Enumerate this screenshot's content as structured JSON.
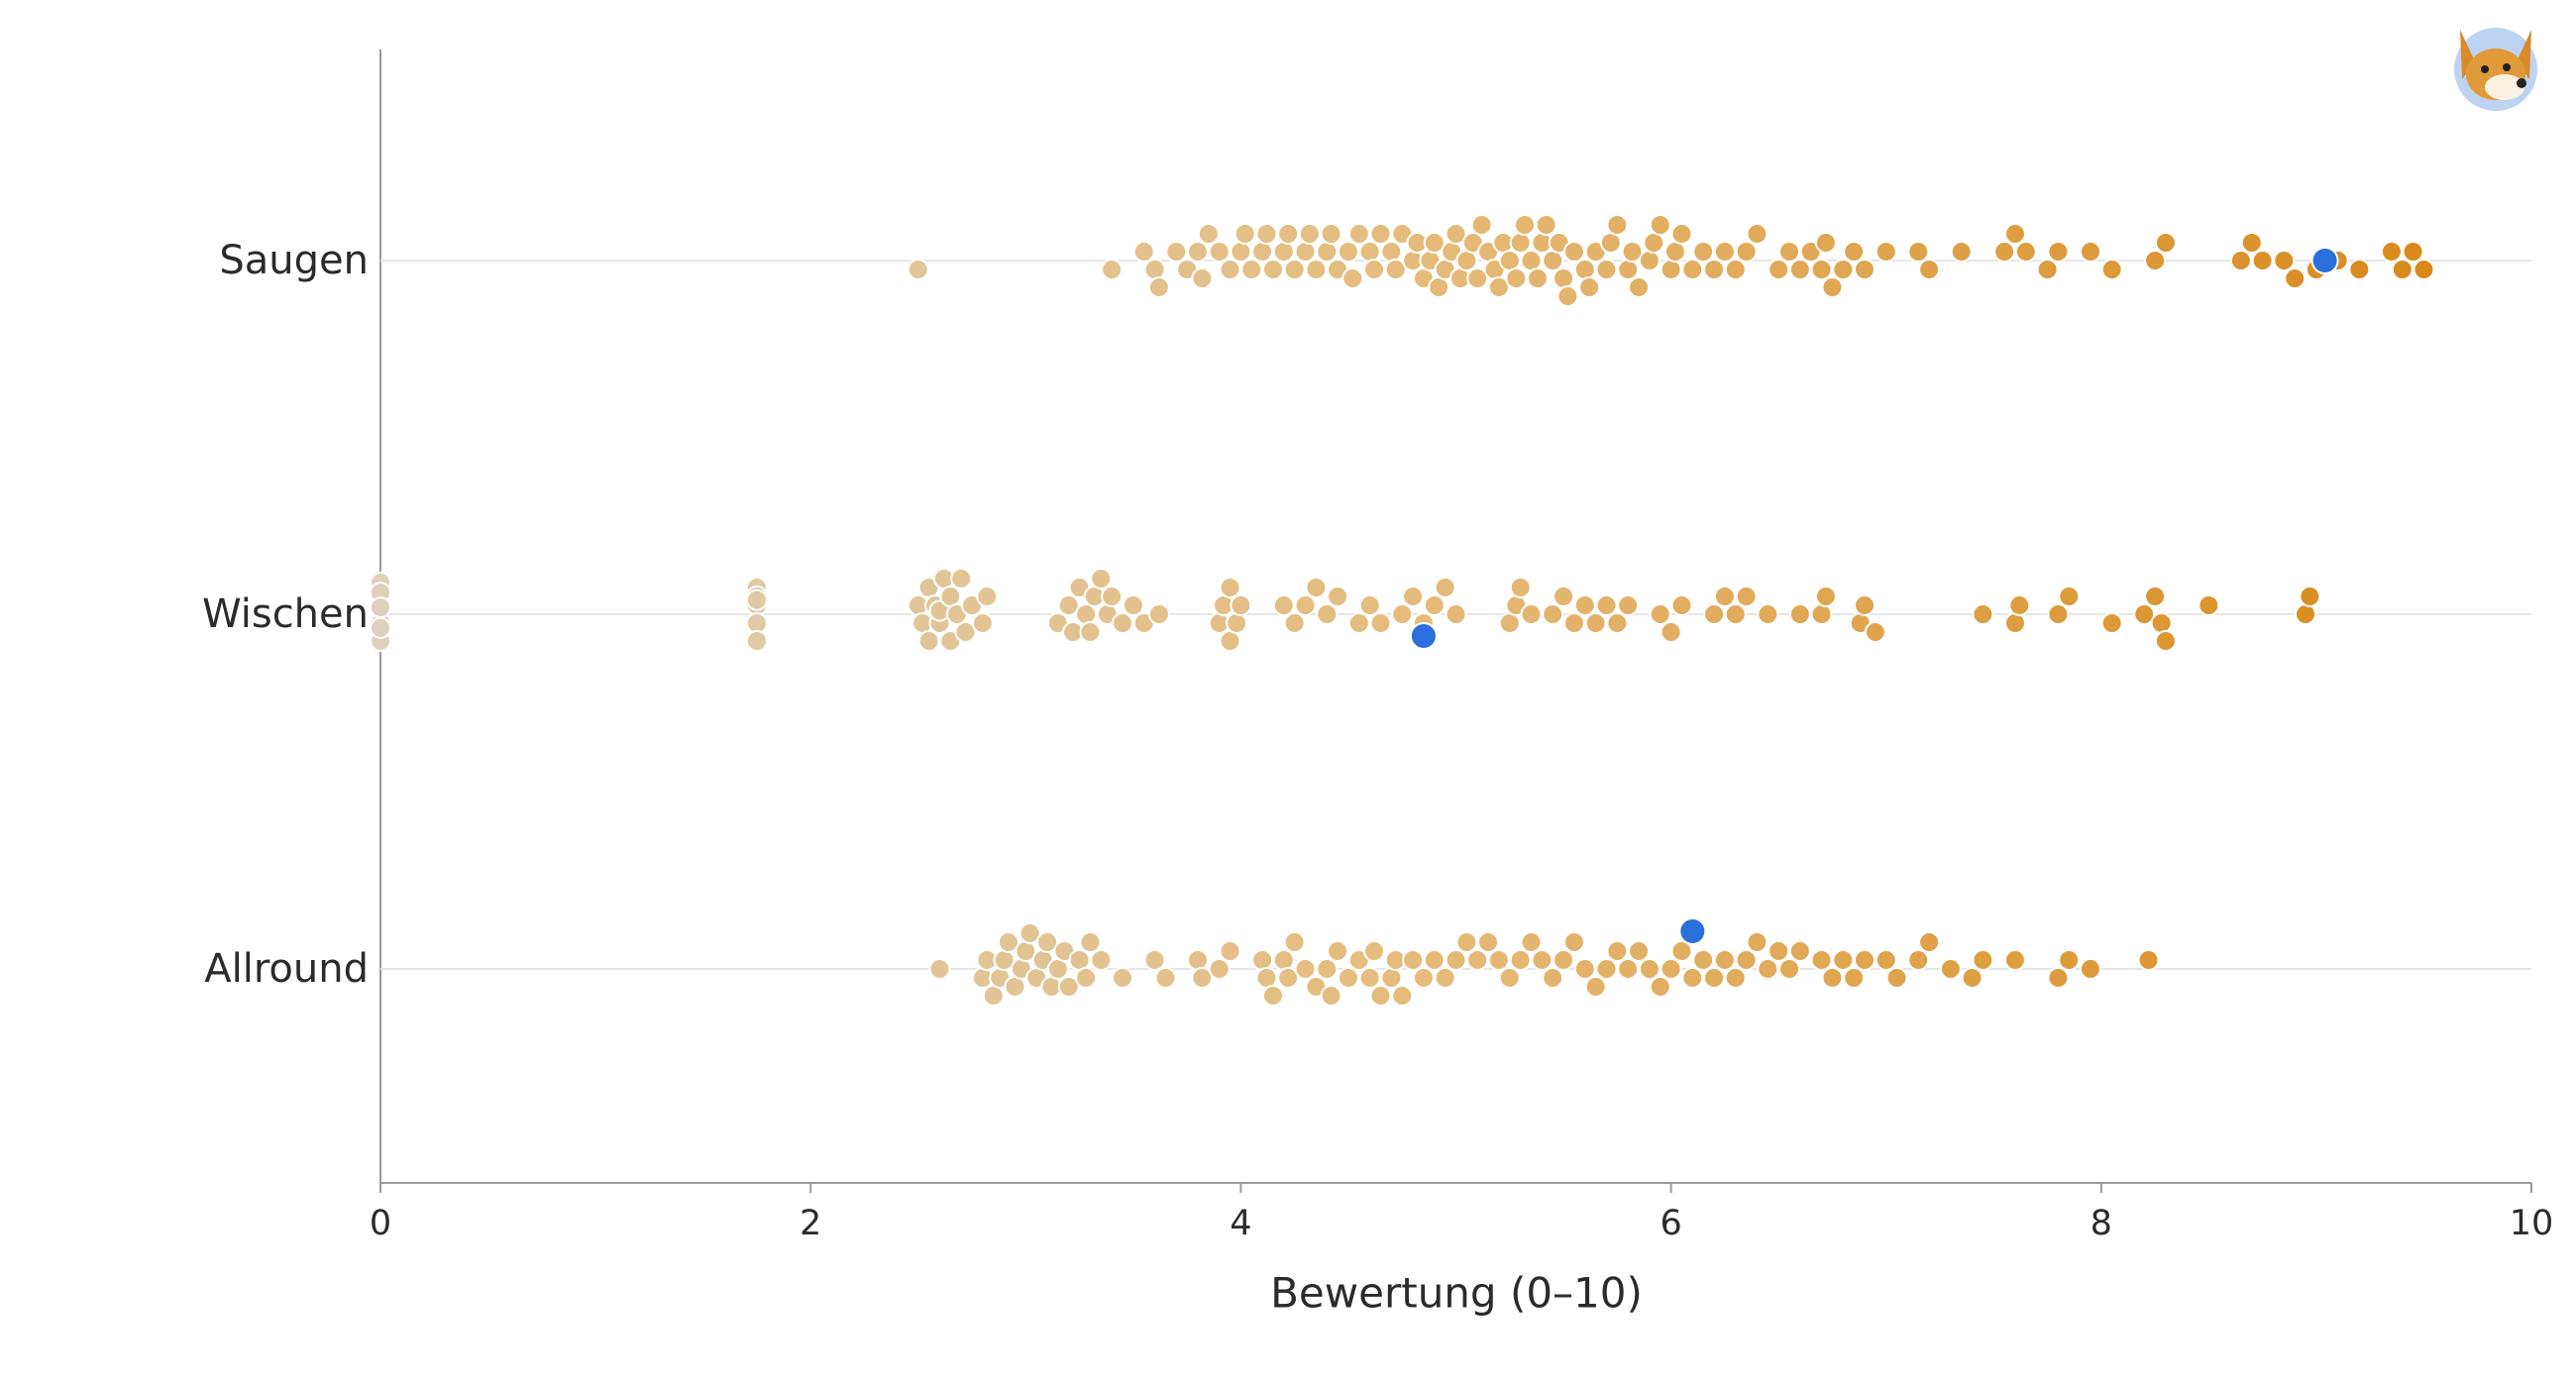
{
  "chart_data": {
    "type": "strip",
    "x_label": "Bewertung (0–10)",
    "categories": [
      "Saugen",
      "Wischen",
      "Allround"
    ],
    "groups": [
      {
        "values": [
          2.5,
          3.4,
          3.55,
          3.6,
          3.62,
          3.7,
          3.75,
          3.8,
          3.82,
          3.85,
          3.9,
          3.95,
          4.0,
          4.02,
          4.05,
          4.1,
          4.12,
          4.15,
          4.2,
          4.22,
          4.25,
          4.3,
          4.32,
          4.35,
          4.4,
          4.42,
          4.45,
          4.5,
          4.52,
          4.55,
          4.6,
          4.62,
          4.65,
          4.7,
          4.72,
          4.75,
          4.8,
          4.82,
          4.85,
          4.88,
          4.9,
          4.92,
          4.95,
          4.98,
          5.0,
          5.02,
          5.05,
          5.08,
          5.1,
          5.12,
          5.15,
          5.18,
          5.2,
          5.22,
          5.25,
          5.28,
          5.3,
          5.32,
          5.35,
          5.38,
          5.4,
          5.42,
          5.45,
          5.48,
          5.5,
          5.52,
          5.55,
          5.6,
          5.62,
          5.65,
          5.7,
          5.72,
          5.75,
          5.8,
          5.82,
          5.85,
          5.9,
          5.92,
          5.95,
          6.0,
          6.02,
          6.05,
          6.1,
          6.15,
          6.2,
          6.25,
          6.3,
          6.35,
          6.4,
          6.5,
          6.55,
          6.6,
          6.65,
          6.7,
          6.72,
          6.75,
          6.8,
          6.85,
          6.9,
          7.0,
          7.15,
          7.2,
          7.35,
          7.55,
          7.6,
          7.65,
          7.75,
          7.8,
          7.95,
          8.05,
          8.25,
          8.3,
          8.65,
          8.7,
          8.75,
          8.85,
          8.9,
          9.0,
          9.1,
          9.2,
          9.35,
          9.4,
          9.45,
          9.5
        ],
        "highlight": 9.04
      },
      {
        "values": [
          0,
          0,
          0,
          0,
          0,
          0,
          0,
          0,
          1.75,
          1.75,
          1.75,
          1.75,
          1.75,
          1.75,
          2.5,
          2.52,
          2.55,
          2.55,
          2.58,
          2.6,
          2.6,
          2.62,
          2.65,
          2.65,
          2.68,
          2.7,
          2.72,
          2.75,
          2.8,
          2.82,
          3.15,
          3.2,
          3.22,
          3.25,
          3.28,
          3.3,
          3.32,
          3.35,
          3.38,
          3.4,
          3.45,
          3.5,
          3.55,
          3.62,
          3.9,
          3.92,
          3.95,
          3.95,
          3.98,
          4.0,
          4.2,
          4.25,
          4.3,
          4.35,
          4.4,
          4.45,
          4.55,
          4.6,
          4.65,
          4.75,
          4.8,
          4.85,
          4.9,
          4.95,
          5.0,
          5.25,
          5.28,
          5.3,
          5.35,
          5.45,
          5.5,
          5.55,
          5.6,
          5.65,
          5.7,
          5.75,
          5.8,
          5.95,
          6.0,
          6.05,
          6.2,
          6.25,
          6.3,
          6.35,
          6.45,
          6.6,
          6.7,
          6.72,
          6.88,
          6.9,
          6.95,
          7.45,
          7.6,
          7.62,
          7.8,
          7.85,
          8.05,
          8.2,
          8.25,
          8.28,
          8.3,
          8.5,
          8.95,
          8.97
        ],
        "highlight": 4.85
      },
      {
        "values": [
          2.6,
          2.8,
          2.82,
          2.85,
          2.88,
          2.9,
          2.92,
          2.95,
          2.98,
          3.0,
          3.02,
          3.05,
          3.08,
          3.1,
          3.12,
          3.15,
          3.18,
          3.2,
          3.25,
          3.28,
          3.3,
          3.35,
          3.45,
          3.6,
          3.65,
          3.8,
          3.82,
          3.9,
          3.95,
          4.1,
          4.12,
          4.15,
          4.2,
          4.22,
          4.25,
          4.3,
          4.35,
          4.4,
          4.42,
          4.45,
          4.5,
          4.55,
          4.6,
          4.62,
          4.65,
          4.7,
          4.72,
          4.75,
          4.8,
          4.85,
          4.9,
          4.95,
          5.0,
          5.05,
          5.1,
          5.15,
          5.2,
          5.25,
          5.3,
          5.35,
          5.4,
          5.45,
          5.5,
          5.55,
          5.6,
          5.65,
          5.7,
          5.75,
          5.8,
          5.85,
          5.9,
          5.95,
          6.0,
          6.05,
          6.1,
          6.15,
          6.2,
          6.25,
          6.3,
          6.35,
          6.4,
          6.45,
          6.5,
          6.55,
          6.6,
          6.7,
          6.75,
          6.8,
          6.85,
          6.9,
          7.0,
          7.05,
          7.15,
          7.2,
          7.3,
          7.4,
          7.45,
          7.6,
          7.8,
          7.85,
          7.95,
          8.22
        ],
        "highlight": 6.1
      }
    ],
    "color_scale": [
      "#ddd0bd",
      "#e5bc7c",
      "#d9891a"
    ],
    "highlight_color": "#2a6fdb",
    "xlim": [
      0,
      10
    ],
    "xticks": [
      0,
      2,
      4,
      6,
      8,
      10
    ],
    "grid": true
  }
}
